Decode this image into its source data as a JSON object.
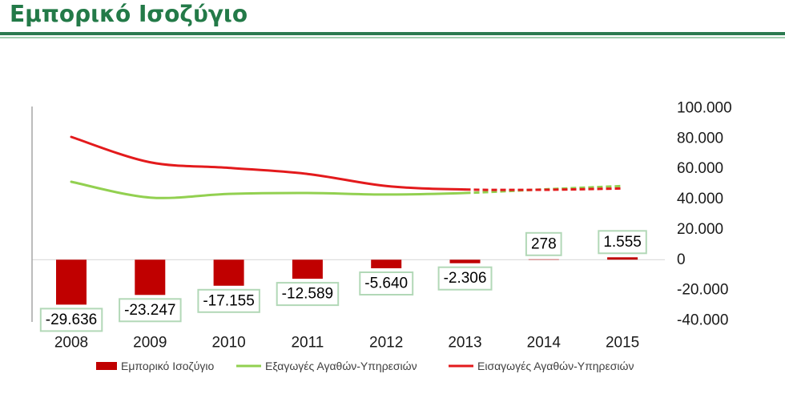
{
  "slide": {
    "title": "Εμπορικό Ισοζύγιο",
    "title_color": "#237a48"
  },
  "chart_data": {
    "type": "bar",
    "categories": [
      "2008",
      "2009",
      "2010",
      "2011",
      "2012",
      "2013",
      "2014",
      "2015"
    ],
    "series": [
      {
        "name": "Εμπορικό Ισοζύγιο",
        "type": "bar",
        "color": "#c00000",
        "values": [
          -29636,
          -23247,
          -17155,
          -12589,
          -5640,
          -2306,
          278,
          1555
        ],
        "labels": [
          "-29.636",
          "-23.247",
          "-17.155",
          "-12.589",
          "-5.640",
          "-2.306",
          "278",
          "1.555"
        ]
      },
      {
        "name": "Εξαγωγές Αγαθών-Υπηρεσιών",
        "type": "line",
        "color": "#92d050",
        "values": [
          51400,
          41000,
          43400,
          44000,
          43000,
          44000,
          46400,
          48600
        ],
        "dashed_from": "2013"
      },
      {
        "name": "Εισαγωγές Αγαθών-Υπηρεσιών",
        "type": "line",
        "color": "#e31a1c",
        "values": [
          81000,
          64300,
          60600,
          56600,
          48600,
          46300,
          46100,
          47000
        ],
        "dashed_from": "2013"
      }
    ],
    "ylim": [
      -40000,
      100000
    ],
    "y_ticks": [
      100000,
      80000,
      60000,
      40000,
      20000,
      0,
      -20000,
      -40000
    ],
    "y_tick_labels": [
      "100.000",
      "80.000",
      "60.000",
      "40.000",
      "20.000",
      "0",
      "-20.000",
      "-40.000"
    ],
    "y_axis_position": "right",
    "grid": false,
    "legend_position": "bottom"
  }
}
